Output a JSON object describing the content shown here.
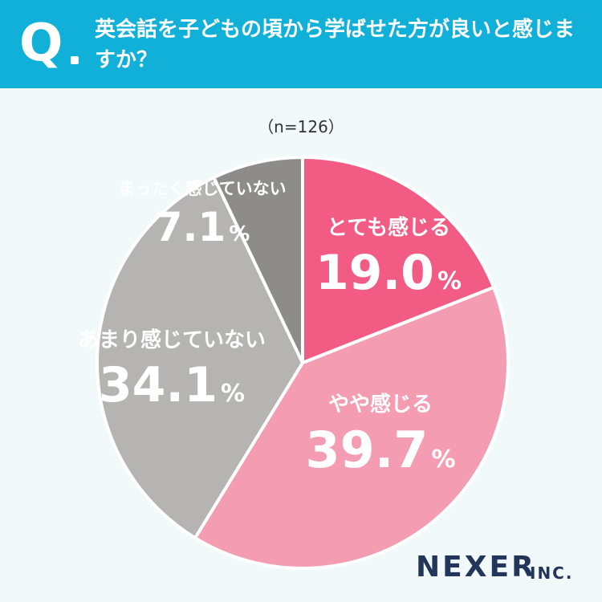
{
  "header": {
    "q_mark": "Q",
    "question": "英会話を子どもの頃から学ばせた方が良いと感じますか？"
  },
  "sample_size": "（n=126）",
  "brand": {
    "name": "NEXER",
    "suffix": "INC."
  },
  "colors": {
    "header_bg": "#11b0d8",
    "slice_strong": "#f25b83",
    "slice_some": "#f49cb2",
    "slice_little": "#b6b3b3",
    "slice_none": "#8e8b8b"
  },
  "chart_data": {
    "type": "pie",
    "title": "",
    "start": "top",
    "direction": "clockwise",
    "slices": [
      {
        "label": "とても感じる",
        "value": 19.0,
        "display": "19.0",
        "unit": "%",
        "color": "#f25b83"
      },
      {
        "label": "やや感じる",
        "value": 39.7,
        "display": "39.7",
        "unit": "%",
        "color": "#f49cb2"
      },
      {
        "label": "あまり感じていない",
        "value": 34.1,
        "display": "34.1",
        "unit": "%",
        "color": "#b6b3b3"
      },
      {
        "label": "まったく感じていない",
        "value": 7.1,
        "display": "7.1",
        "unit": "%",
        "color": "#8e8b8b"
      }
    ]
  }
}
